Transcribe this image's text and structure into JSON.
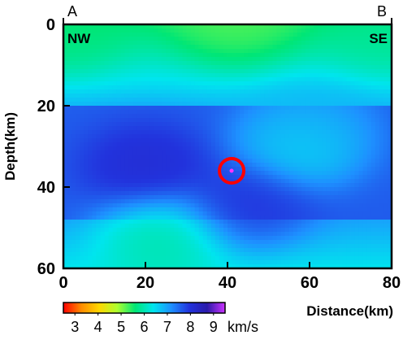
{
  "chart_data": {
    "type": "heatmap",
    "profile_start_label": "A",
    "profile_end_label": "B",
    "left_direction": "NW",
    "right_direction": "SE",
    "xlabel": "Distance(km)",
    "ylabel": "Depth(km)",
    "xlim": [
      0,
      80
    ],
    "ylim": [
      0,
      60
    ],
    "y_inverted": true,
    "x_ticks": [
      0,
      20,
      40,
      60,
      80
    ],
    "y_ticks": [
      0,
      20,
      40,
      60
    ],
    "colorbar": {
      "ticks": [
        3,
        4,
        5,
        6,
        7,
        8,
        9
      ],
      "unit": "km/s",
      "range": [
        2.5,
        9.5
      ],
      "colors": [
        "#ff0000",
        "#ff8c00",
        "#ffd700",
        "#adff2f",
        "#00e676",
        "#00e5ee",
        "#1e90ff",
        "#2233dd",
        "#2a1aaa",
        "#cc33ff"
      ]
    },
    "velocity_anomalies": [
      {
        "x": 42,
        "y": 0,
        "velocity": 5.2,
        "extent": "shallow yellow-green patch"
      },
      {
        "x": 0,
        "y": 2,
        "velocity": 5.6
      },
      {
        "x": 80,
        "y": 2,
        "velocity": 5.8
      },
      {
        "x": 20,
        "y": 35,
        "velocity": 8.2,
        "extent": "high-velocity core"
      },
      {
        "x": 45,
        "y": 44,
        "velocity": 8.0
      },
      {
        "x": 58,
        "y": 30,
        "velocity": 6.3
      },
      {
        "x": 60,
        "y": 25,
        "velocity": 6.9
      },
      {
        "x": 24,
        "y": 52,
        "velocity": 5.8,
        "extent": "low-velocity patch at base"
      }
    ],
    "marker": {
      "x": 41,
      "y": 36,
      "symbol": "red-circle"
    },
    "grid": false,
    "legend_placement": "bottom-left colorbar"
  },
  "colors": {
    "marker": "#ff0000",
    "marker_point": "#ff33ff",
    "axis": "#000000"
  }
}
